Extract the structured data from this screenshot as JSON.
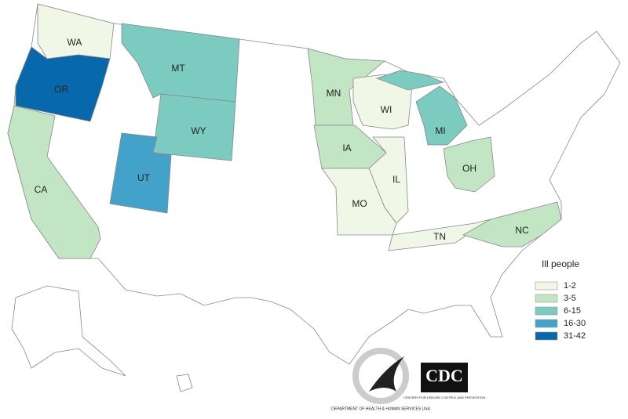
{
  "map": {
    "legend": {
      "title": "Ill people",
      "bins": [
        {
          "label": "1-2",
          "color": "#f1f7e7"
        },
        {
          "label": "3-5",
          "color": "#c2e6c4"
        },
        {
          "label": "6-15",
          "color": "#7ccbc0"
        },
        {
          "label": "16-30",
          "color": "#43a2ca"
        },
        {
          "label": "31-42",
          "color": "#0868ac"
        }
      ]
    },
    "states": [
      {
        "label": "WA",
        "color": "#f1f7e7"
      },
      {
        "label": "OR",
        "color": "#0868ac"
      },
      {
        "label": "CA",
        "color": "#c2e6c4"
      },
      {
        "label": "MT",
        "color": "#7ccbc0"
      },
      {
        "label": "WY",
        "color": "#7ccbc0"
      },
      {
        "label": "UT",
        "color": "#43a2ca"
      },
      {
        "label": "MN",
        "color": "#c2e6c4"
      },
      {
        "label": "IA",
        "color": "#c2e6c4"
      },
      {
        "label": "WI",
        "color": "#f1f7e7"
      },
      {
        "label": "IL",
        "color": "#f1f7e7"
      },
      {
        "label": "MO",
        "color": "#f1f7e7"
      },
      {
        "label": "MI",
        "color": "#7ccbc0"
      },
      {
        "label": "OH",
        "color": "#c2e6c4"
      },
      {
        "label": "TN",
        "color": "#f1f7e7"
      },
      {
        "label": "NC",
        "color": "#c2e6c4"
      }
    ]
  },
  "logos": {
    "hhs": "DEPARTMENT OF HEALTH & HUMAN SERVICES USA",
    "cdc": "CDC",
    "cdc_sub": "CENTERS FOR DISEASE CONTROL AND PREVENTION"
  }
}
